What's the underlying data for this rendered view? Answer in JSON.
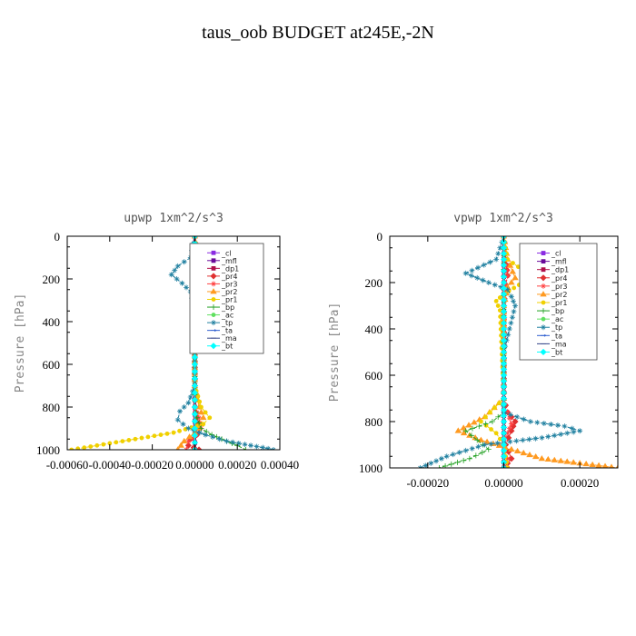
{
  "suptitle": "taus_oob  BUDGET at245E,-2N",
  "chart_data": [
    {
      "type": "line",
      "title": "upwp   1xm^2/s^3",
      "ylabel": "Pressure [hPa]",
      "xlabel": "",
      "xlim": [
        -0.0006,
        0.0004
      ],
      "ylim": [
        1000,
        0
      ],
      "xticklabels": [
        "-0.00060",
        "-0.00040",
        "-0.00020",
        "0.00000",
        "0.00020",
        "0.00040"
      ],
      "xtickvalues": [
        -0.0006,
        -0.0004,
        -0.0002,
        0.0,
        0.0002,
        0.0004
      ],
      "yticks": [
        0,
        200,
        400,
        600,
        800,
        1000
      ],
      "legend_position": "top-right",
      "series": [
        {
          "name": "_cl",
          "color": "#8a2be2",
          "marker": "square",
          "x": [
            0,
            0,
            0,
            0,
            0,
            0,
            0,
            0,
            0,
            0,
            0
          ],
          "y": [
            0,
            100,
            200,
            300,
            400,
            500,
            600,
            700,
            800,
            900,
            1000
          ]
        },
        {
          "name": "_mfl",
          "color": "#6a0a9a",
          "marker": "square",
          "x": [
            0,
            0,
            0,
            0,
            0,
            0,
            0,
            0,
            0,
            0,
            0
          ],
          "y": [
            0,
            100,
            200,
            300,
            400,
            500,
            600,
            700,
            800,
            900,
            1000
          ]
        },
        {
          "name": "_dp1",
          "color": "#b0104a",
          "marker": "square",
          "x": [
            0,
            0,
            0,
            0,
            0,
            0,
            0,
            0,
            0,
            0,
            0
          ],
          "y": [
            0,
            100,
            200,
            300,
            400,
            500,
            600,
            700,
            800,
            900,
            1000
          ]
        },
        {
          "name": "_pr4",
          "color": "#e03030",
          "marker": "diamond",
          "x": [
            0,
            1e-05,
            2e-05,
            1e-05,
            0,
            0,
            0,
            0,
            1e-05,
            2e-05,
            1e-05,
            -2e-05,
            -3e-05,
            2e-05
          ],
          "y": [
            0,
            100,
            160,
            200,
            300,
            500,
            700,
            800,
            850,
            900,
            930,
            950,
            980,
            1000
          ]
        },
        {
          "name": "_pr3",
          "color": "#ff4040",
          "marker": "star",
          "x": [
            0,
            1e-05,
            3e-05,
            2e-05,
            0,
            0,
            0,
            0,
            2e-05,
            3e-05,
            1e-05,
            -3e-05,
            -4e-05
          ],
          "y": [
            0,
            100,
            170,
            200,
            300,
            500,
            700,
            800,
            850,
            900,
            930,
            960,
            1000
          ]
        },
        {
          "name": "_pr2",
          "color": "#ff9a20",
          "marker": "triangle",
          "x": [
            0,
            2e-05,
            5e-05,
            3e-05,
            0,
            0,
            0,
            2e-05,
            4e-05,
            3e-05,
            0,
            -5e-05,
            -8e-05
          ],
          "y": [
            0,
            100,
            170,
            200,
            300,
            500,
            700,
            800,
            850,
            880,
            920,
            960,
            1000
          ]
        },
        {
          "name": "_pr1",
          "color": "#f0d000",
          "marker": "circle",
          "x": [
            0,
            1e-05,
            6e-05,
            4e-05,
            1e-05,
            0,
            0,
            3e-05,
            7e-05,
            4e-05,
            -0.0001,
            -0.0004,
            -0.00058
          ],
          "y": [
            0,
            100,
            180,
            210,
            260,
            400,
            700,
            800,
            850,
            880,
            920,
            970,
            1000
          ]
        },
        {
          "name": "_bp",
          "color": "#20a020",
          "marker": "plus",
          "x": [
            0,
            0,
            0,
            0,
            0,
            1e-05,
            3e-05,
            8e-05,
            0.00015,
            0.0002,
            0.00024
          ],
          "y": [
            0,
            200,
            400,
            600,
            800,
            850,
            900,
            930,
            960,
            980,
            1000
          ]
        },
        {
          "name": "_ac",
          "color": "#60e060",
          "marker": "circle",
          "x": [
            0,
            0,
            0,
            0,
            0,
            0,
            0,
            0,
            0,
            0,
            0
          ],
          "y": [
            0,
            100,
            200,
            300,
            400,
            500,
            600,
            700,
            800,
            900,
            1000
          ]
        },
        {
          "name": "_tp",
          "color": "#2080a0",
          "marker": "star",
          "x": [
            0,
            -2e-05,
            -8e-05,
            -0.00011,
            -6e-05,
            -2e-05,
            0,
            0,
            -3e-05,
            -7e-05,
            -8e-05,
            -3e-05,
            5e-05,
            0.00015,
            0.00032,
            0.00037
          ],
          "y": [
            0,
            100,
            140,
            180,
            220,
            260,
            350,
            700,
            780,
            820,
            860,
            900,
            930,
            960,
            990,
            1000
          ]
        },
        {
          "name": "_ta",
          "color": "#3060d0",
          "marker": "arrow",
          "x": [
            0,
            0,
            0,
            0,
            0,
            0,
            0,
            0,
            0,
            0,
            0
          ],
          "y": [
            0,
            100,
            200,
            300,
            400,
            500,
            600,
            700,
            800,
            900,
            1000
          ]
        },
        {
          "name": "_ma",
          "color": "#334488",
          "marker": "dash",
          "x": [
            0,
            0,
            0,
            0,
            0,
            0,
            0,
            0,
            0,
            0,
            0
          ],
          "y": [
            0,
            100,
            200,
            300,
            400,
            500,
            600,
            700,
            800,
            900,
            1000
          ]
        },
        {
          "name": "_bt",
          "color": "#00ffff",
          "marker": "diamond",
          "x": [
            0,
            0,
            0,
            0,
            0,
            0,
            0,
            0,
            0,
            0,
            0
          ],
          "y": [
            0,
            100,
            200,
            300,
            400,
            500,
            600,
            700,
            800,
            900,
            1000
          ]
        }
      ]
    },
    {
      "type": "line",
      "title": "vpwp   1xm^2/s^3",
      "ylabel": "Pressure [hPa]",
      "xlabel": "",
      "xlim": [
        -0.0003,
        0.0003
      ],
      "ylim": [
        1000,
        0
      ],
      "xticklabels": [
        "-0.00020",
        "0.00000",
        "0.00020"
      ],
      "xtickvalues": [
        -0.0002,
        0.0,
        0.0002
      ],
      "yticks": [
        0,
        200,
        400,
        600,
        800,
        1000
      ],
      "legend_position": "top-right",
      "series": [
        {
          "name": "_cl",
          "color": "#8a2be2",
          "marker": "square",
          "x": [
            0,
            0,
            0,
            0,
            0,
            0,
            0,
            0,
            0,
            0,
            0
          ],
          "y": [
            0,
            100,
            200,
            300,
            400,
            500,
            600,
            700,
            800,
            900,
            1000
          ]
        },
        {
          "name": "_mfl",
          "color": "#6a0a9a",
          "marker": "square",
          "x": [
            0,
            0,
            0,
            0,
            0,
            0,
            0,
            0,
            0,
            0,
            0
          ],
          "y": [
            0,
            100,
            200,
            300,
            400,
            500,
            600,
            700,
            800,
            900,
            1000
          ]
        },
        {
          "name": "_dp1",
          "color": "#b0104a",
          "marker": "square",
          "x": [
            0,
            0,
            0,
            0,
            0,
            0,
            0,
            0,
            0,
            0,
            0
          ],
          "y": [
            0,
            100,
            200,
            300,
            400,
            500,
            600,
            700,
            800,
            900,
            1000
          ]
        },
        {
          "name": "_pr4",
          "color": "#e03030",
          "marker": "diamond",
          "x": [
            0,
            5e-06,
            1e-05,
            5e-06,
            0,
            0,
            0,
            1e-05,
            3e-05,
            2e-05,
            5e-06,
            2e-05,
            0
          ],
          "y": [
            0,
            100,
            170,
            210,
            300,
            500,
            700,
            760,
            800,
            840,
            900,
            960,
            1000
          ]
        },
        {
          "name": "_pr3",
          "color": "#ff4040",
          "marker": "star",
          "x": [
            0,
            5e-06,
            1e-05,
            5e-06,
            0,
            0,
            0,
            1e-05,
            2e-05,
            1e-05,
            -5e-06,
            1e-05,
            1e-05
          ],
          "y": [
            0,
            100,
            170,
            210,
            300,
            500,
            700,
            760,
            810,
            850,
            900,
            960,
            1000
          ]
        },
        {
          "name": "_pr2",
          "color": "#ff9a20",
          "marker": "triangle",
          "x": [
            0,
            1e-05,
            3e-05,
            1e-05,
            0,
            0,
            0,
            -5e-05,
            -0.00012,
            -6e-05,
            2e-05,
            0.0001,
            0.0003
          ],
          "y": [
            0,
            100,
            180,
            220,
            300,
            500,
            700,
            780,
            840,
            880,
            920,
            960,
            1000
          ]
        },
        {
          "name": "_pr1",
          "color": "#f0d000",
          "marker": "circle",
          "x": [
            0,
            1e-05,
            8e-05,
            4e-05,
            0,
            -2e-05,
            -1e-05,
            0,
            -6e-05,
            -2e-05,
            0,
            1e-05
          ],
          "y": [
            0,
            100,
            180,
            210,
            250,
            280,
            320,
            700,
            800,
            850,
            900,
            1000
          ]
        },
        {
          "name": "_bp",
          "color": "#20a020",
          "marker": "plus",
          "x": [
            0,
            0,
            0,
            0,
            0,
            -3e-05,
            -0.0001,
            -7e-05,
            -4e-05,
            -9e-05,
            -0.00017
          ],
          "y": [
            0,
            200,
            400,
            600,
            760,
            800,
            840,
            880,
            920,
            960,
            1000
          ]
        },
        {
          "name": "_ac",
          "color": "#60e060",
          "marker": "circle",
          "x": [
            0,
            0,
            0,
            0,
            0,
            0,
            0,
            0,
            0,
            0,
            0
          ],
          "y": [
            0,
            100,
            200,
            300,
            400,
            500,
            600,
            700,
            800,
            900,
            1000
          ]
        },
        {
          "name": "_tp",
          "color": "#2080a0",
          "marker": "star",
          "x": [
            0,
            -2e-05,
            -0.0001,
            -4e-05,
            1e-05,
            2e-05,
            3e-05,
            0,
            0,
            7e-05,
            0.00016,
            0.0002,
            0.0001,
            -5e-05,
            -0.00015,
            -0.00022
          ],
          "y": [
            0,
            100,
            160,
            200,
            230,
            260,
            300,
            500,
            760,
            800,
            820,
            840,
            870,
            900,
            950,
            1000
          ]
        },
        {
          "name": "_ta",
          "color": "#3060d0",
          "marker": "arrow",
          "x": [
            0,
            0,
            0,
            0,
            0,
            0,
            0,
            0,
            0,
            0,
            0
          ],
          "y": [
            0,
            100,
            200,
            300,
            400,
            500,
            600,
            700,
            800,
            900,
            1000
          ]
        },
        {
          "name": "_ma",
          "color": "#334488",
          "marker": "dash",
          "x": [
            0,
            0,
            0,
            0,
            0,
            0,
            0,
            0,
            0,
            0,
            0
          ],
          "y": [
            0,
            100,
            200,
            300,
            400,
            500,
            600,
            700,
            800,
            900,
            1000
          ]
        },
        {
          "name": "_bt",
          "color": "#00ffff",
          "marker": "diamond",
          "x": [
            0,
            0,
            0,
            0,
            0,
            0,
            0,
            0,
            0,
            0,
            0
          ],
          "y": [
            0,
            100,
            200,
            300,
            400,
            500,
            600,
            700,
            800,
            900,
            1000
          ]
        }
      ]
    }
  ]
}
